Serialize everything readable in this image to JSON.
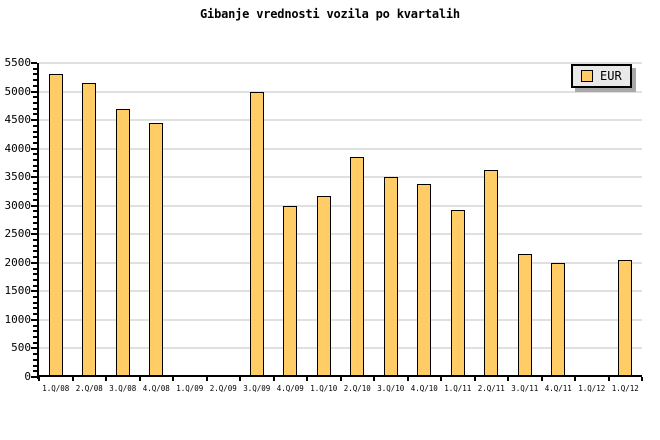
{
  "colors": {
    "background": "#ffffff",
    "bar_fill": "#ffcc66",
    "bar_border": "#000000",
    "grid": "#e0e0e0",
    "axis": "#000000",
    "legend_bg": "#e9e9e9",
    "legend_border": "#000000",
    "legend_shadow": "#a8a8a8",
    "text": "#000000"
  },
  "legend": {
    "label": "EUR"
  },
  "chart_data": {
    "type": "bar",
    "title": "Gibanje vrednosti vozila po kvartalih",
    "xlabel": "",
    "ylabel": "",
    "categories": [
      "1.Q/08",
      "2.Q/08",
      "3.Q/08",
      "4.Q/08",
      "1.Q/09",
      "2.Q/09",
      "3.Q/09",
      "4.Q/09",
      "1.Q/10",
      "2.Q/10",
      "3.Q/10",
      "4.Q/10",
      "1.Q/11",
      "2.Q/11",
      "3.Q/11",
      "4.Q/11",
      "1.Q/12",
      "1.Q/12"
    ],
    "series": [
      {
        "name": "EUR",
        "values": [
          5300,
          5150,
          4700,
          4450,
          null,
          null,
          5000,
          3000,
          3175,
          3850,
          3500,
          3375,
          2925,
          3625,
          2150,
          2000,
          null,
          2050
        ]
      }
    ],
    "ylim": [
      0,
      5500
    ],
    "y_tick_step": 500,
    "y_minor_tick_step": 100,
    "y_tick_labels": [
      "0",
      "500",
      "1000",
      "1500",
      "2000",
      "2500",
      "3000",
      "3500",
      "4000",
      "4500",
      "5000",
      "5500"
    ],
    "grid": "horizontal-major",
    "legend_position": "top-right",
    "missing_categories": [
      "1.Q/09",
      "2.Q/09",
      "1.Q/12 (first)"
    ]
  }
}
